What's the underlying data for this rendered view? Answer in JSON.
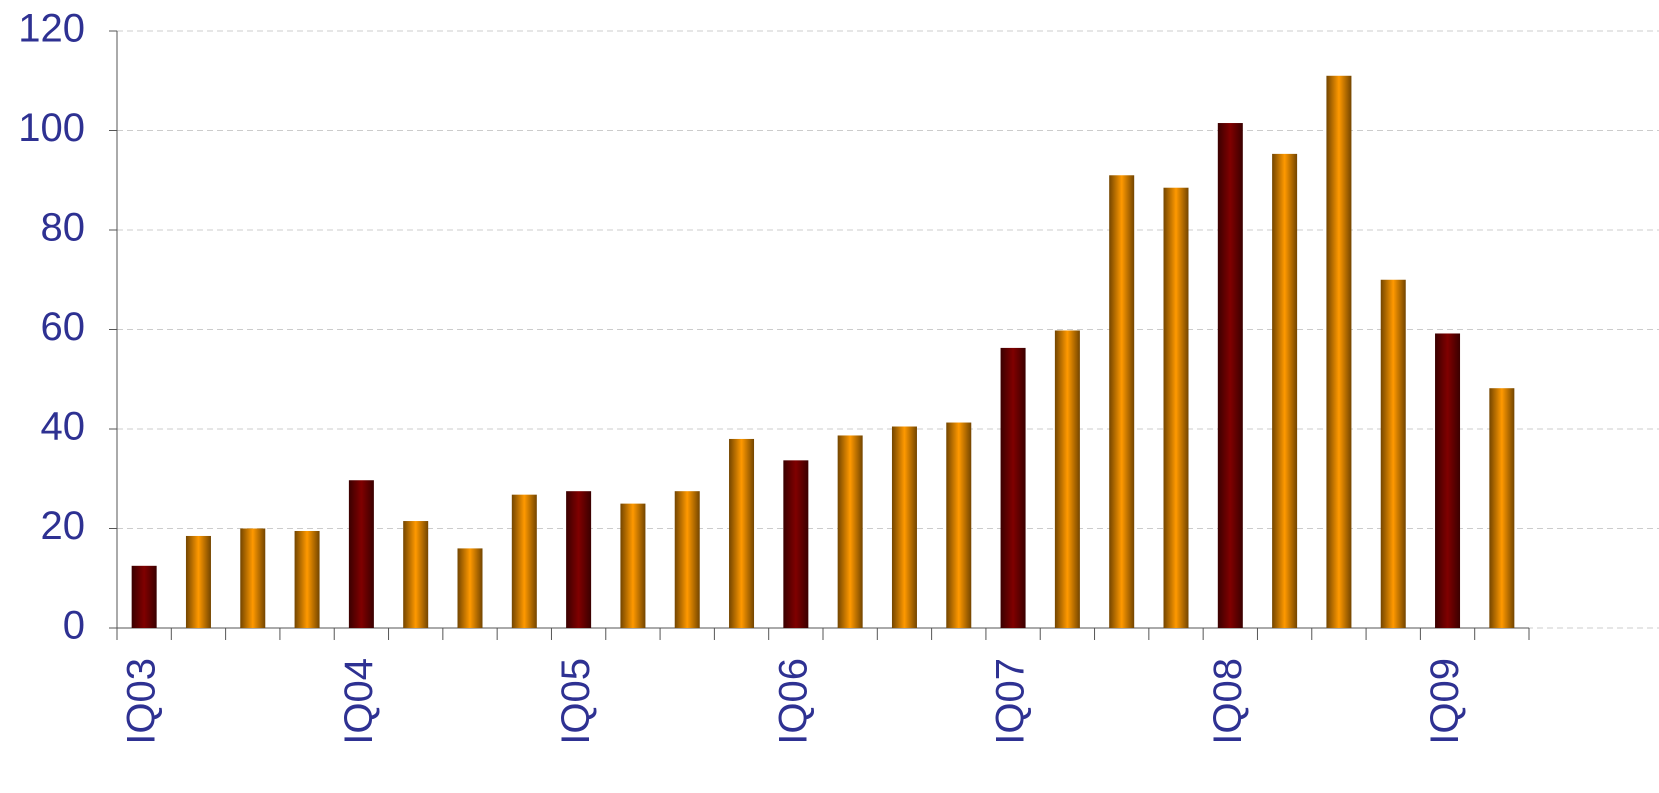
{
  "chart_data": {
    "type": "bar",
    "categories": [
      "IQ03",
      null,
      null,
      null,
      "IQ04",
      null,
      null,
      null,
      "IQ05",
      null,
      null,
      null,
      "IQ06",
      null,
      null,
      null,
      "IQ07",
      null,
      null,
      null,
      "IQ08",
      null,
      null,
      null,
      "IQ09",
      null
    ],
    "values": [
      12.5,
      18.5,
      20,
      19.5,
      29.7,
      21.5,
      16,
      26.8,
      27.5,
      25,
      27.5,
      38,
      33.7,
      38.7,
      40.5,
      41.3,
      56.3,
      59.8,
      91,
      88.5,
      101.5,
      95.3,
      111,
      70,
      59.2,
      48.2
    ],
    "colors": [
      "#800000",
      "#ff9900",
      "#ff9900",
      "#ff9900",
      "#800000",
      "#ff9900",
      "#ff9900",
      "#ff9900",
      "#800000",
      "#ff9900",
      "#ff9900",
      "#ff9900",
      "#800000",
      "#ff9900",
      "#ff9900",
      "#ff9900",
      "#800000",
      "#ff9900",
      "#ff9900",
      "#ff9900",
      "#800000",
      "#ff9900",
      "#ff9900",
      "#ff9900",
      "#800000",
      "#ff9900"
    ],
    "ylim": [
      0,
      120
    ],
    "yticks": [
      0,
      20,
      40,
      60,
      80,
      100,
      120
    ],
    "grid": true
  }
}
